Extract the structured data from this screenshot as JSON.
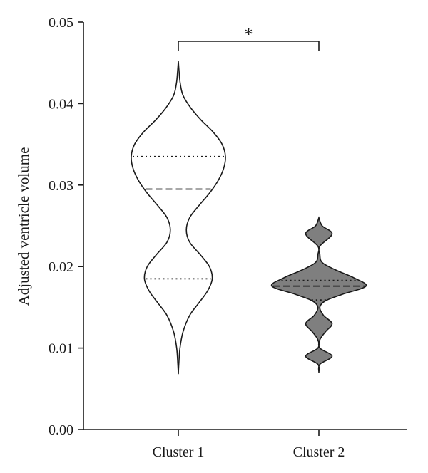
{
  "chart_data": {
    "type": "violin",
    "ylabel": "Adjusted ventricle volume",
    "xlabel": "",
    "ylim": [
      0,
      0.05
    ],
    "yticks": [
      "0.00",
      "0.01",
      "0.02",
      "0.03",
      "0.04",
      "0.05"
    ],
    "categories": [
      "Cluster 1",
      "Cluster 2"
    ],
    "series": [
      {
        "category": "Cluster 1",
        "fill": "#ffffff",
        "min": 0.0068,
        "max": 0.0452,
        "median": 0.0295,
        "q1": 0.0185,
        "q3": 0.0335,
        "profile": [
          [
            0.0068,
            0.0
          ],
          [
            0.008,
            0.01
          ],
          [
            0.01,
            0.035
          ],
          [
            0.012,
            0.1
          ],
          [
            0.014,
            0.24
          ],
          [
            0.0155,
            0.43
          ],
          [
            0.017,
            0.62
          ],
          [
            0.0185,
            0.72
          ],
          [
            0.02,
            0.66
          ],
          [
            0.0215,
            0.46
          ],
          [
            0.023,
            0.24
          ],
          [
            0.0245,
            0.17
          ],
          [
            0.026,
            0.24
          ],
          [
            0.0275,
            0.44
          ],
          [
            0.029,
            0.66
          ],
          [
            0.0305,
            0.84
          ],
          [
            0.032,
            0.96
          ],
          [
            0.0335,
            1.0
          ],
          [
            0.035,
            0.93
          ],
          [
            0.0365,
            0.74
          ],
          [
            0.038,
            0.48
          ],
          [
            0.0395,
            0.26
          ],
          [
            0.041,
            0.1
          ],
          [
            0.0425,
            0.04
          ],
          [
            0.044,
            0.015
          ],
          [
            0.0452,
            0.0
          ]
        ]
      },
      {
        "category": "Cluster 2",
        "fill": "#7f7f7f",
        "min": 0.007,
        "max": 0.026,
        "median": 0.0176,
        "q1": 0.0159,
        "q3": 0.0183,
        "profile": [
          [
            0.007,
            0.0
          ],
          [
            0.008,
            0.02
          ],
          [
            0.009,
            0.28
          ],
          [
            0.01,
            0.02
          ],
          [
            0.011,
            0.02
          ],
          [
            0.012,
            0.14
          ],
          [
            0.013,
            0.28
          ],
          [
            0.014,
            0.1
          ],
          [
            0.015,
            0.02
          ],
          [
            0.0158,
            0.14
          ],
          [
            0.0166,
            0.5
          ],
          [
            0.0176,
            1.0
          ],
          [
            0.0186,
            0.75
          ],
          [
            0.0196,
            0.35
          ],
          [
            0.0205,
            0.07
          ],
          [
            0.0215,
            0.02
          ],
          [
            0.0225,
            0.02
          ],
          [
            0.024,
            0.28
          ],
          [
            0.025,
            0.07
          ],
          [
            0.026,
            0.0
          ]
        ]
      }
    ],
    "annotations": [
      {
        "type": "significance-bracket",
        "between": [
          "Cluster 1",
          "Cluster 2"
        ],
        "label": "*"
      }
    ]
  }
}
